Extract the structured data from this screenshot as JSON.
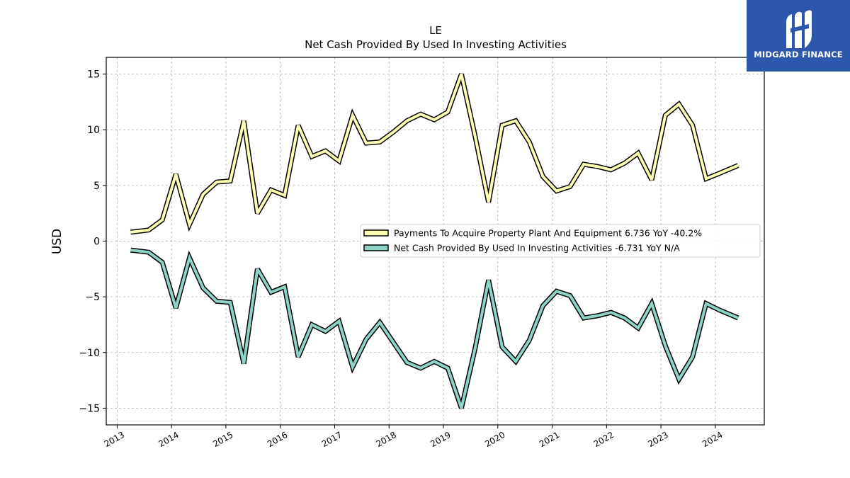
{
  "chart_data": {
    "type": "line",
    "title": "LE",
    "subtitle": "Net Cash Provided By Used In Investing Activities",
    "ylabel": "USD",
    "xlabel": "",
    "xlim": [
      2012.8,
      2024.9
    ],
    "ylim": [
      -16.5,
      16.5
    ],
    "x_ticks": [
      2013,
      2014,
      2015,
      2016,
      2017,
      2018,
      2019,
      2020,
      2021,
      2022,
      2023,
      2024
    ],
    "x_tick_labels": [
      "2013",
      "2014",
      "2015",
      "2016",
      "2017",
      "2018",
      "2019",
      "2020",
      "2021",
      "2022",
      "2023",
      "2024"
    ],
    "y_ticks": [
      -15,
      -10,
      -5,
      0,
      5,
      10,
      15
    ],
    "y_tick_labels": [
      "−15",
      "−10",
      "−5",
      "0",
      "5",
      "10",
      "15"
    ],
    "grid": true,
    "legend_position": "center-right",
    "x": [
      2013.25,
      2013.58,
      2013.83,
      2014.08,
      2014.33,
      2014.58,
      2014.83,
      2015.08,
      2015.33,
      2015.58,
      2015.83,
      2016.08,
      2016.33,
      2016.58,
      2016.83,
      2017.08,
      2017.33,
      2017.58,
      2017.83,
      2018.08,
      2018.33,
      2018.58,
      2018.83,
      2019.08,
      2019.33,
      2019.58,
      2019.83,
      2020.08,
      2020.33,
      2020.58,
      2020.83,
      2021.08,
      2021.33,
      2021.58,
      2021.83,
      2022.08,
      2022.33,
      2022.58,
      2022.83,
      2023.08,
      2023.33,
      2023.58,
      2023.83,
      2024.08,
      2024.42
    ],
    "series": [
      {
        "name": "Payments To Acquire Property Plant And Equipment  6.736 YoY -40.2%",
        "color": "#ffffb3",
        "values": [
          0.8,
          1.0,
          1.9,
          6.0,
          1.5,
          4.2,
          5.3,
          5.4,
          10.8,
          2.5,
          4.6,
          4.1,
          10.4,
          7.6,
          8.1,
          7.2,
          11.3,
          8.8,
          8.9,
          9.8,
          10.8,
          11.4,
          10.9,
          11.6,
          15.0,
          9.5,
          3.5,
          10.4,
          10.8,
          8.9,
          5.8,
          4.5,
          4.9,
          6.9,
          6.7,
          6.4,
          7.0,
          7.9,
          5.5,
          11.3,
          12.3,
          10.4,
          5.6,
          6.1,
          6.8
        ]
      },
      {
        "name": "Net Cash Provided By Used In Investing Activities  -6.731 YoY N/A",
        "color": "#8dd3c7",
        "values": [
          -0.8,
          -1.0,
          -1.9,
          -6.0,
          -1.5,
          -4.2,
          -5.4,
          -5.5,
          -11.0,
          -2.5,
          -4.6,
          -4.1,
          -10.4,
          -7.5,
          -8.1,
          -7.2,
          -11.3,
          -8.8,
          -7.3,
          -9.1,
          -10.9,
          -11.4,
          -10.8,
          -11.4,
          -15.0,
          -9.7,
          -3.5,
          -9.5,
          -10.8,
          -8.9,
          -5.8,
          -4.5,
          -4.9,
          -6.9,
          -6.7,
          -6.4,
          -6.9,
          -7.8,
          -5.6,
          -9.4,
          -12.4,
          -10.4,
          -5.6,
          -6.2,
          -6.9
        ]
      }
    ]
  },
  "logo": {
    "text": "MIDGARD FINANCE",
    "color": "#2b58ad"
  }
}
